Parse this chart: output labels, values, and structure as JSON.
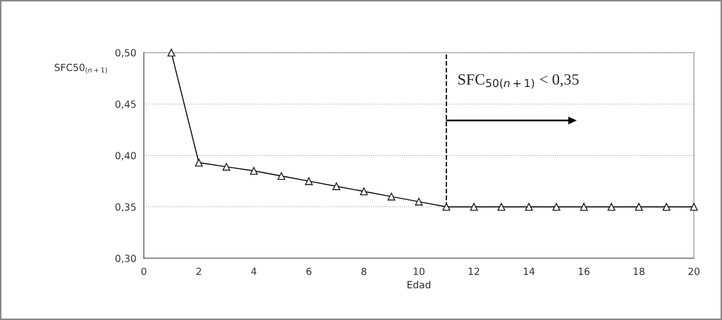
{
  "chart_data": {
    "type": "line",
    "xlabel": "Edad",
    "ylabel": "SFC50$_{(n+1)}$",
    "x": [
      1,
      2,
      3,
      4,
      5,
      6,
      7,
      8,
      9,
      10,
      11,
      12,
      13,
      14,
      15,
      16,
      17,
      18,
      19,
      20
    ],
    "series": [
      {
        "color": "#000000",
        "values": [
          0.5,
          0.393,
          0.389,
          0.385,
          0.38,
          0.375,
          0.37,
          0.365,
          0.36,
          0.355,
          0.35,
          0.35,
          0.35,
          0.35,
          0.35,
          0.35,
          0.35,
          0.35,
          0.35,
          0.35
        ]
      }
    ],
    "marker": "triangle",
    "line_style": "solid",
    "xlim": [
      0,
      20
    ],
    "xticks": [
      0,
      2,
      4,
      6,
      8,
      10,
      12,
      14,
      16,
      18,
      20
    ],
    "ylim": [
      0.3,
      0.5
    ],
    "yticks": [
      {
        "value": 0.3,
        "label": "0,30"
      },
      {
        "value": 0.35,
        "label": "0,35"
      },
      {
        "value": 0.4,
        "label": "0,40"
      },
      {
        "value": 0.45,
        "label": "0,45"
      },
      {
        "value": 0.5,
        "label": "0,50"
      }
    ],
    "grid": "y",
    "ref_lines": [
      {
        "axis": "x",
        "value": 11,
        "color": "#000000",
        "line_style": "dashed"
      }
    ],
    "annotations": [
      "SFC$_{50(n+1)}$ < 0,35"
    ]
  }
}
